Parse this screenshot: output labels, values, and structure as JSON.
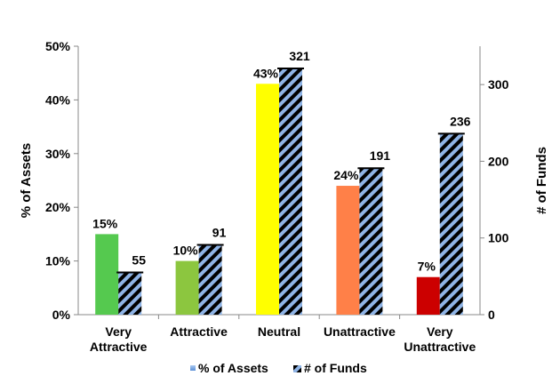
{
  "chart_data": {
    "type": "bar",
    "categories": [
      [
        "Very",
        "Attractive"
      ],
      [
        "Attractive"
      ],
      [
        "Neutral"
      ],
      [
        "Unattractive"
      ],
      [
        "Very",
        "Unattractive"
      ]
    ],
    "series": [
      {
        "name": "% of Assets",
        "axis": "left",
        "values": [
          15,
          10,
          43,
          24,
          7
        ],
        "labels": [
          "15%",
          "10%",
          "43%",
          "24%",
          "7%"
        ],
        "colors": [
          "#55c94f",
          "#8cc63f",
          "#ffff00",
          "#ff8048",
          "#cc0000"
        ]
      },
      {
        "name": "# of Funds",
        "axis": "right",
        "values": [
          55,
          91,
          321,
          191,
          236
        ],
        "labels": [
          "55",
          "91",
          "321",
          "191",
          "236"
        ],
        "pattern": "diagonal-stripes",
        "colors": [
          "#000000",
          "#8fb4e6"
        ]
      }
    ],
    "y_left": {
      "label": "% of Assets",
      "lim": [
        0,
        50
      ],
      "ticks": [
        0,
        10,
        20,
        30,
        40,
        50
      ],
      "tick_labels": [
        "0%",
        "10%",
        "20%",
        "30%",
        "40%",
        "50%"
      ]
    },
    "y_right": {
      "label": "# of Funds",
      "lim": [
        0,
        350
      ],
      "ticks": [
        0,
        100,
        200,
        300
      ],
      "tick_labels": [
        "0",
        "100",
        "200",
        "300"
      ]
    },
    "grid": false,
    "legend": {
      "position": "bottom",
      "entries": [
        "% of Assets",
        "# of Funds"
      ]
    }
  }
}
